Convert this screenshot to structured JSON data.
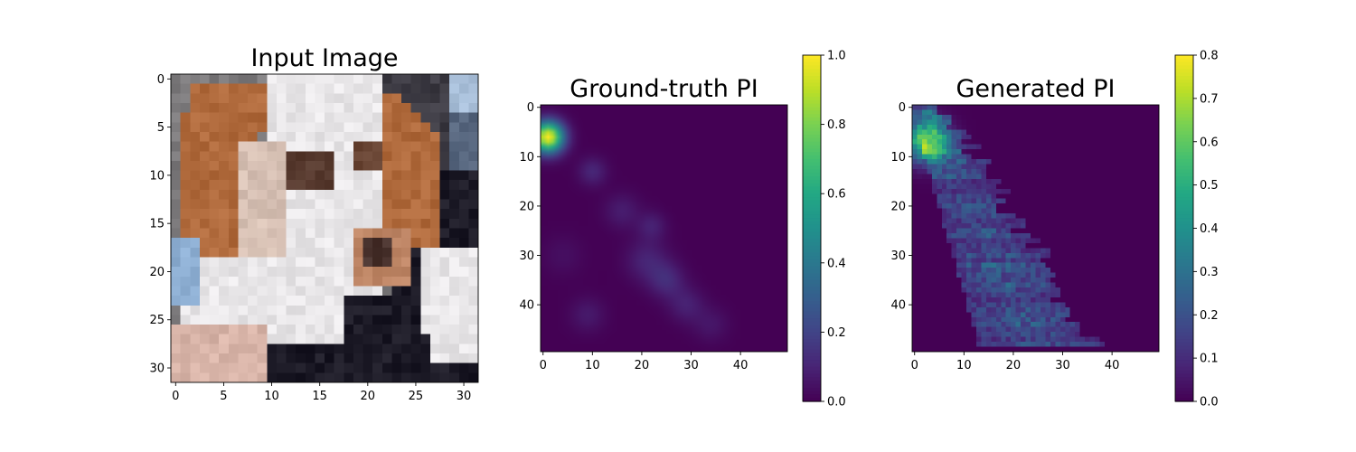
{
  "chart_data": [
    {
      "type": "heatmap",
      "title": "Input Image",
      "image_width": 32,
      "image_height": 32,
      "x_range": [
        -0.5,
        31.5
      ],
      "y_range": [
        -0.5,
        31.5
      ],
      "xticks": [
        0,
        5,
        10,
        15,
        20,
        25,
        30
      ],
      "yticks": [
        0,
        5,
        10,
        15,
        20,
        25,
        30
      ],
      "content": "RGB photo of a brown and white puppy",
      "colors": {
        "fur_white": "#e8e6e8",
        "fur_brown": "#b06a3c",
        "background_dark": "#1c1a26",
        "background_gray": "#7c7a7c",
        "blue_left": "#8fb0d4",
        "skin": "#d8b4a8"
      }
    },
    {
      "type": "heatmap",
      "title": "Ground-truth PI",
      "grid": [
        50,
        50
      ],
      "x_range": [
        -0.5,
        49.5
      ],
      "y_range": [
        -0.5,
        49.5
      ],
      "xticks": [
        0,
        10,
        20,
        30,
        40
      ],
      "yticks": [
        0,
        10,
        20,
        30,
        40
      ],
      "colormap": "viridis",
      "clim": [
        0,
        1.0
      ],
      "colorbar_ticks": [
        0.0,
        0.2,
        0.4,
        0.6,
        0.8,
        1.0
      ],
      "blobs": [
        {
          "x": 1,
          "y": 6,
          "amplitude": 1.0,
          "sigma": 2.2
        },
        {
          "x": 10,
          "y": 13,
          "amplitude": 0.11,
          "sigma": 2.0
        },
        {
          "x": 16,
          "y": 21,
          "amplitude": 0.08,
          "sigma": 2.5
        },
        {
          "x": 22,
          "y": 24,
          "amplitude": 0.09,
          "sigma": 2.0
        },
        {
          "x": 21,
          "y": 31,
          "amplitude": 0.1,
          "sigma": 3.0
        },
        {
          "x": 25,
          "y": 35,
          "amplitude": 0.12,
          "sigma": 2.5
        },
        {
          "x": 29,
          "y": 40,
          "amplitude": 0.09,
          "sigma": 2.5
        },
        {
          "x": 34,
          "y": 44,
          "amplitude": 0.06,
          "sigma": 2.5
        },
        {
          "x": 9,
          "y": 42,
          "amplitude": 0.07,
          "sigma": 2.5
        },
        {
          "x": 4,
          "y": 30,
          "amplitude": 0.04,
          "sigma": 3.0
        }
      ]
    },
    {
      "type": "heatmap",
      "title": "Generated PI",
      "grid": [
        50,
        50
      ],
      "x_range": [
        -0.5,
        49.5
      ],
      "y_range": [
        -0.5,
        49.5
      ],
      "xticks": [
        0,
        10,
        20,
        30,
        40
      ],
      "yticks": [
        0,
        10,
        20,
        30,
        40
      ],
      "colormap": "viridis",
      "clim": [
        0,
        0.8
      ],
      "colorbar_ticks": [
        0.0,
        0.1,
        0.2,
        0.3,
        0.4,
        0.5,
        0.6,
        0.7,
        0.8
      ],
      "peak": {
        "x": 2,
        "y": 7,
        "value": 0.55
      },
      "band": {
        "rows": [
          0,
          48
        ],
        "left_start": 0,
        "left_end": 14,
        "width_start": 6,
        "width_end": 22
      }
    }
  ]
}
